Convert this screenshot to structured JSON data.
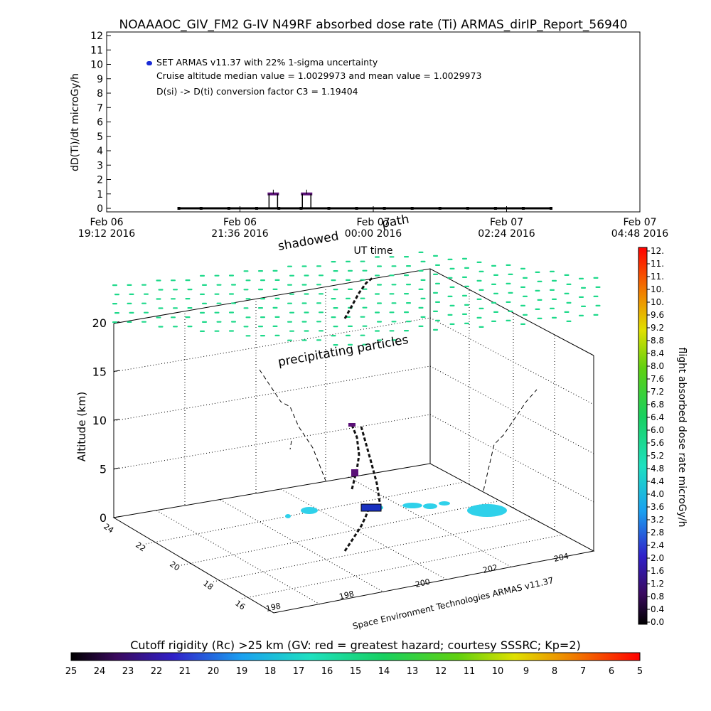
{
  "title": "NOAAAOC_GIV_FM2 G-IV    N49RF  absorbed dose rate (Ti) ARMAS_dirIP_Report_56940",
  "chart_data": [
    {
      "type": "scatter",
      "ylabel": "dD(Ti)/dt microGy/h",
      "xlabel": "UT time",
      "y_ticks": [
        "0",
        "1",
        "2",
        "3",
        "4",
        "5",
        "6",
        "7",
        "8",
        "9",
        "10",
        "11",
        "12"
      ],
      "ylim": [
        0,
        12
      ],
      "x_ticks": [
        {
          "day": "Feb 06",
          "time": "19:12 2016"
        },
        {
          "day": "Feb 06",
          "time": "21:36 2016"
        },
        {
          "day": "Feb 07",
          "time": "00:00 2016"
        },
        {
          "day": "Feb 07",
          "time": "02:24 2016"
        },
        {
          "day": "Feb 07",
          "time": "04:48 2016"
        }
      ],
      "legend": "SET ARMAS v11.37 with 22% 1-sigma uncertainty",
      "annotations": [
        "Cruise altitude median value = 1.0029973 and mean value = 1.0029973",
        "D(si) -> D(ti) conversion factor C3 = 1.19404"
      ],
      "series_color": "#000000",
      "legend_color": "#1a2cd6",
      "series": [
        {
          "x_hours": [
            20.5,
            20.9,
            21.4,
            21.9,
            22.3,
            22.7,
            23.2,
            23.7,
            0.2,
            0.7,
            1.2,
            1.7,
            2.2,
            2.7,
            3.2
          ],
          "values": [
            0,
            0,
            0,
            0,
            0,
            0,
            0,
            0,
            0,
            0,
            0,
            0,
            0,
            0,
            0
          ]
        }
      ],
      "spikes": [
        {
          "x_hours": 22.2,
          "value": 1.0,
          "color": "#5a1077"
        },
        {
          "x_hours": 22.8,
          "value": 1.0,
          "color": "#5a1077"
        }
      ]
    },
    {
      "type": "scatter",
      "zlabel": "Altitude (km)",
      "z_ticks": [
        "0",
        "5",
        "10",
        "15",
        "20"
      ],
      "lat_ticks": [
        "24",
        "22",
        "20",
        "18",
        "16"
      ],
      "lon_ticks": [
        "198",
        "198",
        "200",
        "202",
        "204"
      ],
      "labels": [
        "shadowed",
        "path",
        "precipitating particles"
      ],
      "credit": "Space Environment Technologies ARMAS v11.37",
      "particle_color": "#1ed98a",
      "surface_color": "#2fd1ea",
      "track_color": "#111111"
    },
    {
      "type": "heatmap",
      "label": "flight absorbed dose rate microGy/h",
      "ticks": [
        "0.0",
        "0.4",
        "0.8",
        "1.2",
        "1.6",
        "2.0",
        "2.4",
        "2.8",
        "3.2",
        "3.6",
        "4.0",
        "4.4",
        "4.8",
        "5.2",
        "5.6",
        "6.0",
        "6.4",
        "6.8",
        "7.2",
        "7.6",
        "8.0",
        "8.4",
        "8.8",
        "9.2",
        "9.6",
        "10.",
        "10.",
        "11.",
        "11.",
        "12."
      ],
      "range": [
        0,
        12
      ]
    },
    {
      "type": "heatmap",
      "label": "Cutoff rigidity (Rc) >25 km (GV: red = greatest hazard; courtesy SSSRC; Kp=2)",
      "ticks": [
        "25",
        "24",
        "23",
        "22",
        "21",
        "20",
        "19",
        "18",
        "17",
        "16",
        "15",
        "14",
        "13",
        "12",
        "11",
        "10",
        "9",
        "8",
        "7",
        "6",
        "5"
      ],
      "range": [
        25,
        5
      ]
    }
  ]
}
